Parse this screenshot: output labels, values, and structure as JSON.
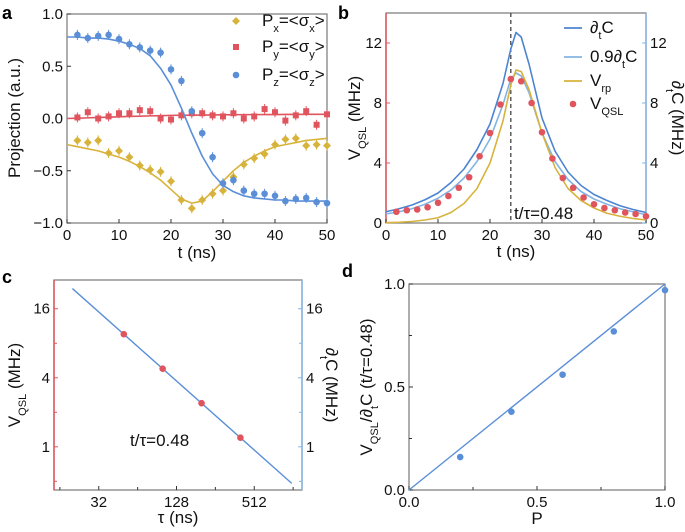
{
  "colors": {
    "yellow": "#d8b33c",
    "red": "#e0545e",
    "blue": "#5a8fd8",
    "lightblue": "#84b4e2",
    "darkblue": "#4d84d2",
    "axis": "#777777"
  },
  "chart_data": [
    {
      "panel": "a",
      "type": "scatter",
      "xlabel": "t (ns)",
      "ylabel": "Projection (a.u.)",
      "xlim": [
        0,
        50
      ],
      "ylim": [
        -1,
        1
      ],
      "xticks": [
        0,
        10,
        20,
        30,
        40,
        50
      ],
      "yticks": [
        -1.0,
        -0.5,
        0.0,
        0.5,
        1.0
      ],
      "ytick_labels": [
        "−1.0",
        "−0.5",
        "0.0",
        "0.5",
        "1.0"
      ],
      "legend_position": "top-right",
      "x": [
        2,
        4,
        6,
        8,
        10,
        12,
        14,
        16,
        18,
        20,
        22,
        24,
        26,
        28,
        30,
        32,
        34,
        36,
        38,
        40,
        42,
        44,
        46,
        48,
        50
      ],
      "fit_x": [
        0,
        2,
        4,
        6,
        8,
        10,
        12,
        14,
        16,
        18,
        20,
        22,
        24,
        26,
        28,
        30,
        32,
        34,
        36,
        38,
        40,
        42,
        44,
        46,
        48,
        50
      ],
      "series": [
        {
          "name": "P_{x}=<σ_{x}>",
          "color": "yellow",
          "marker": "diamond",
          "values": [
            -0.21,
            -0.23,
            -0.21,
            -0.33,
            -0.31,
            -0.37,
            -0.45,
            -0.49,
            -0.51,
            -0.6,
            -0.78,
            -0.86,
            -0.78,
            -0.72,
            -0.69,
            -0.56,
            -0.44,
            -0.38,
            -0.34,
            -0.25,
            -0.2,
            -0.19,
            -0.26,
            -0.25,
            -0.26
          ],
          "fit": [
            -0.25,
            -0.27,
            -0.29,
            -0.31,
            -0.34,
            -0.37,
            -0.41,
            -0.46,
            -0.52,
            -0.59,
            -0.68,
            -0.77,
            -0.81,
            -0.79,
            -0.7,
            -0.6,
            -0.5,
            -0.42,
            -0.36,
            -0.31,
            -0.27,
            -0.25,
            -0.23,
            -0.21,
            -0.2,
            -0.19
          ]
        },
        {
          "name": "P_{y}=<σ_{y}>",
          "color": "red",
          "marker": "square",
          "values": [
            0.01,
            0.06,
            0.0,
            0.02,
            0.05,
            0.05,
            0.08,
            0.07,
            0.0,
            -0.01,
            0.03,
            0.05,
            0.05,
            0.03,
            0.02,
            0.05,
            0.0,
            0.02,
            0.09,
            0.06,
            -0.02,
            0.03,
            0.07,
            -0.06,
            0.04
          ],
          "fit": [
            0.0,
            0.003,
            0.006,
            0.01,
            0.013,
            0.016,
            0.02,
            0.022,
            0.025,
            0.027,
            0.03,
            0.031,
            0.032,
            0.033,
            0.034,
            0.035,
            0.036,
            0.037,
            0.037,
            0.038,
            0.038,
            0.039,
            0.039,
            0.04,
            0.04,
            0.04
          ]
        },
        {
          "name": "P_{z}=<σ_{z}>",
          "color": "blue",
          "marker": "circle",
          "values": [
            0.8,
            0.77,
            0.79,
            0.8,
            0.76,
            0.71,
            0.68,
            0.65,
            0.63,
            0.47,
            0.36,
            0.07,
            -0.14,
            -0.37,
            -0.62,
            -0.59,
            -0.69,
            -0.72,
            -0.72,
            -0.74,
            -0.79,
            -0.77,
            -0.76,
            -0.8,
            -0.81
          ],
          "fit": [
            0.78,
            0.78,
            0.77,
            0.77,
            0.76,
            0.74,
            0.71,
            0.67,
            0.6,
            0.48,
            0.32,
            0.1,
            -0.14,
            -0.36,
            -0.53,
            -0.64,
            -0.7,
            -0.74,
            -0.76,
            -0.77,
            -0.78,
            -0.78,
            -0.79,
            -0.79,
            -0.79,
            -0.79
          ]
        }
      ]
    },
    {
      "panel": "b",
      "type": "line",
      "xlabel": "t (ns)",
      "ylabel": "V_{QSL} (MHz)",
      "ylabel_right": "∂_{t}C (MHz)",
      "xlim": [
        0,
        50
      ],
      "ylim": [
        0,
        14
      ],
      "xticks": [
        0,
        10,
        20,
        30,
        40,
        50
      ],
      "yticks": [
        0,
        4,
        8,
        12
      ],
      "vline_x": 24,
      "annotation": "t/τ=0.48",
      "legend_position": "top-right",
      "curve_x": [
        0,
        2.5,
        5,
        7.5,
        10,
        12.5,
        15,
        17.5,
        20,
        22.5,
        24,
        25,
        26,
        27.5,
        30,
        32.5,
        35,
        37.5,
        40,
        42.5,
        45,
        47.5,
        50
      ],
      "series": [
        {
          "name": "∂_{t}C",
          "color": "darkblue",
          "kind": "line",
          "values": [
            0.75,
            0.95,
            1.2,
            1.55,
            2.0,
            2.7,
            3.6,
            4.9,
            6.6,
            9.3,
            11.6,
            12.7,
            12.4,
            10.6,
            7.0,
            4.8,
            3.4,
            2.5,
            1.9,
            1.5,
            1.15,
            0.9,
            0.7
          ]
        },
        {
          "name": "0.9∂_{t}C",
          "color": "lightblue",
          "kind": "line",
          "values": [
            0.6,
            0.75,
            0.95,
            1.25,
            1.65,
            2.2,
            3.0,
            4.1,
            5.6,
            7.9,
            9.6,
            10.0,
            9.8,
            8.7,
            6.0,
            4.1,
            2.9,
            2.1,
            1.6,
            1.25,
            0.95,
            0.75,
            0.55
          ]
        },
        {
          "name": "V_{rp}",
          "color": "yellow",
          "kind": "line",
          "values": [
            0.02,
            0.05,
            0.1,
            0.2,
            0.35,
            0.7,
            1.3,
            2.3,
            4.0,
            6.8,
            9.2,
            10.2,
            10.1,
            8.9,
            6.0,
            3.7,
            2.3,
            1.5,
            1.0,
            0.65,
            0.45,
            0.3,
            0.2
          ]
        },
        {
          "name": "V_{QSL}",
          "color": "red",
          "kind": "scatter",
          "x": [
            2,
            4,
            6,
            8,
            10,
            12,
            14,
            16,
            18,
            20,
            22,
            24,
            26,
            28,
            30,
            32,
            34,
            36,
            38,
            40,
            42,
            44,
            46,
            48,
            50
          ],
          "values": [
            0.75,
            0.85,
            0.9,
            1.05,
            1.35,
            1.8,
            2.35,
            3.05,
            4.45,
            6.0,
            7.9,
            9.6,
            9.45,
            8.0,
            6.05,
            4.3,
            3.0,
            2.35,
            1.7,
            1.25,
            1.0,
            0.85,
            0.7,
            0.6,
            0.45
          ]
        }
      ]
    },
    {
      "panel": "c",
      "type": "scatter",
      "xlabel": "τ (ns)",
      "ylabel": "V_{QSL} (MHz)",
      "ylabel_right": "∂_{t}C (MHz)",
      "xscale": "log2",
      "yscale": "log2",
      "xlim": [
        14.4,
        1200
      ],
      "ylim": [
        0.42,
        28.5
      ],
      "xticks": [
        32,
        128,
        512
      ],
      "yticks": [
        1,
        4,
        16
      ],
      "annotation": "t/τ=0.48",
      "points": {
        "x": [
          50,
          100,
          200,
          400
        ],
        "y": [
          9.6,
          4.8,
          2.4,
          1.2
        ],
        "color": "red"
      },
      "fit_line": {
        "x": [
          20,
          1000
        ],
        "y": [
          24,
          0.48
        ],
        "color": "blue"
      }
    },
    {
      "panel": "d",
      "type": "scatter",
      "xlabel": "P",
      "ylabel": "V_{QSL}/∂_{t}C (t/τ=0.48)",
      "xlim": [
        0,
        1
      ],
      "ylim": [
        0,
        1
      ],
      "xticks": [
        0.0,
        0.5,
        1.0
      ],
      "yticks": [
        0.0,
        0.5,
        1.0
      ],
      "points": {
        "x": [
          0.2,
          0.4,
          0.6,
          0.8,
          1.0
        ],
        "y": [
          0.16,
          0.38,
          0.56,
          0.77,
          0.97
        ],
        "color": "blue"
      },
      "fit_line": {
        "x": [
          0,
          1
        ],
        "y": [
          0,
          1
        ],
        "color": "blue"
      }
    }
  ],
  "panel_letters": [
    "a",
    "b",
    "c",
    "d"
  ]
}
